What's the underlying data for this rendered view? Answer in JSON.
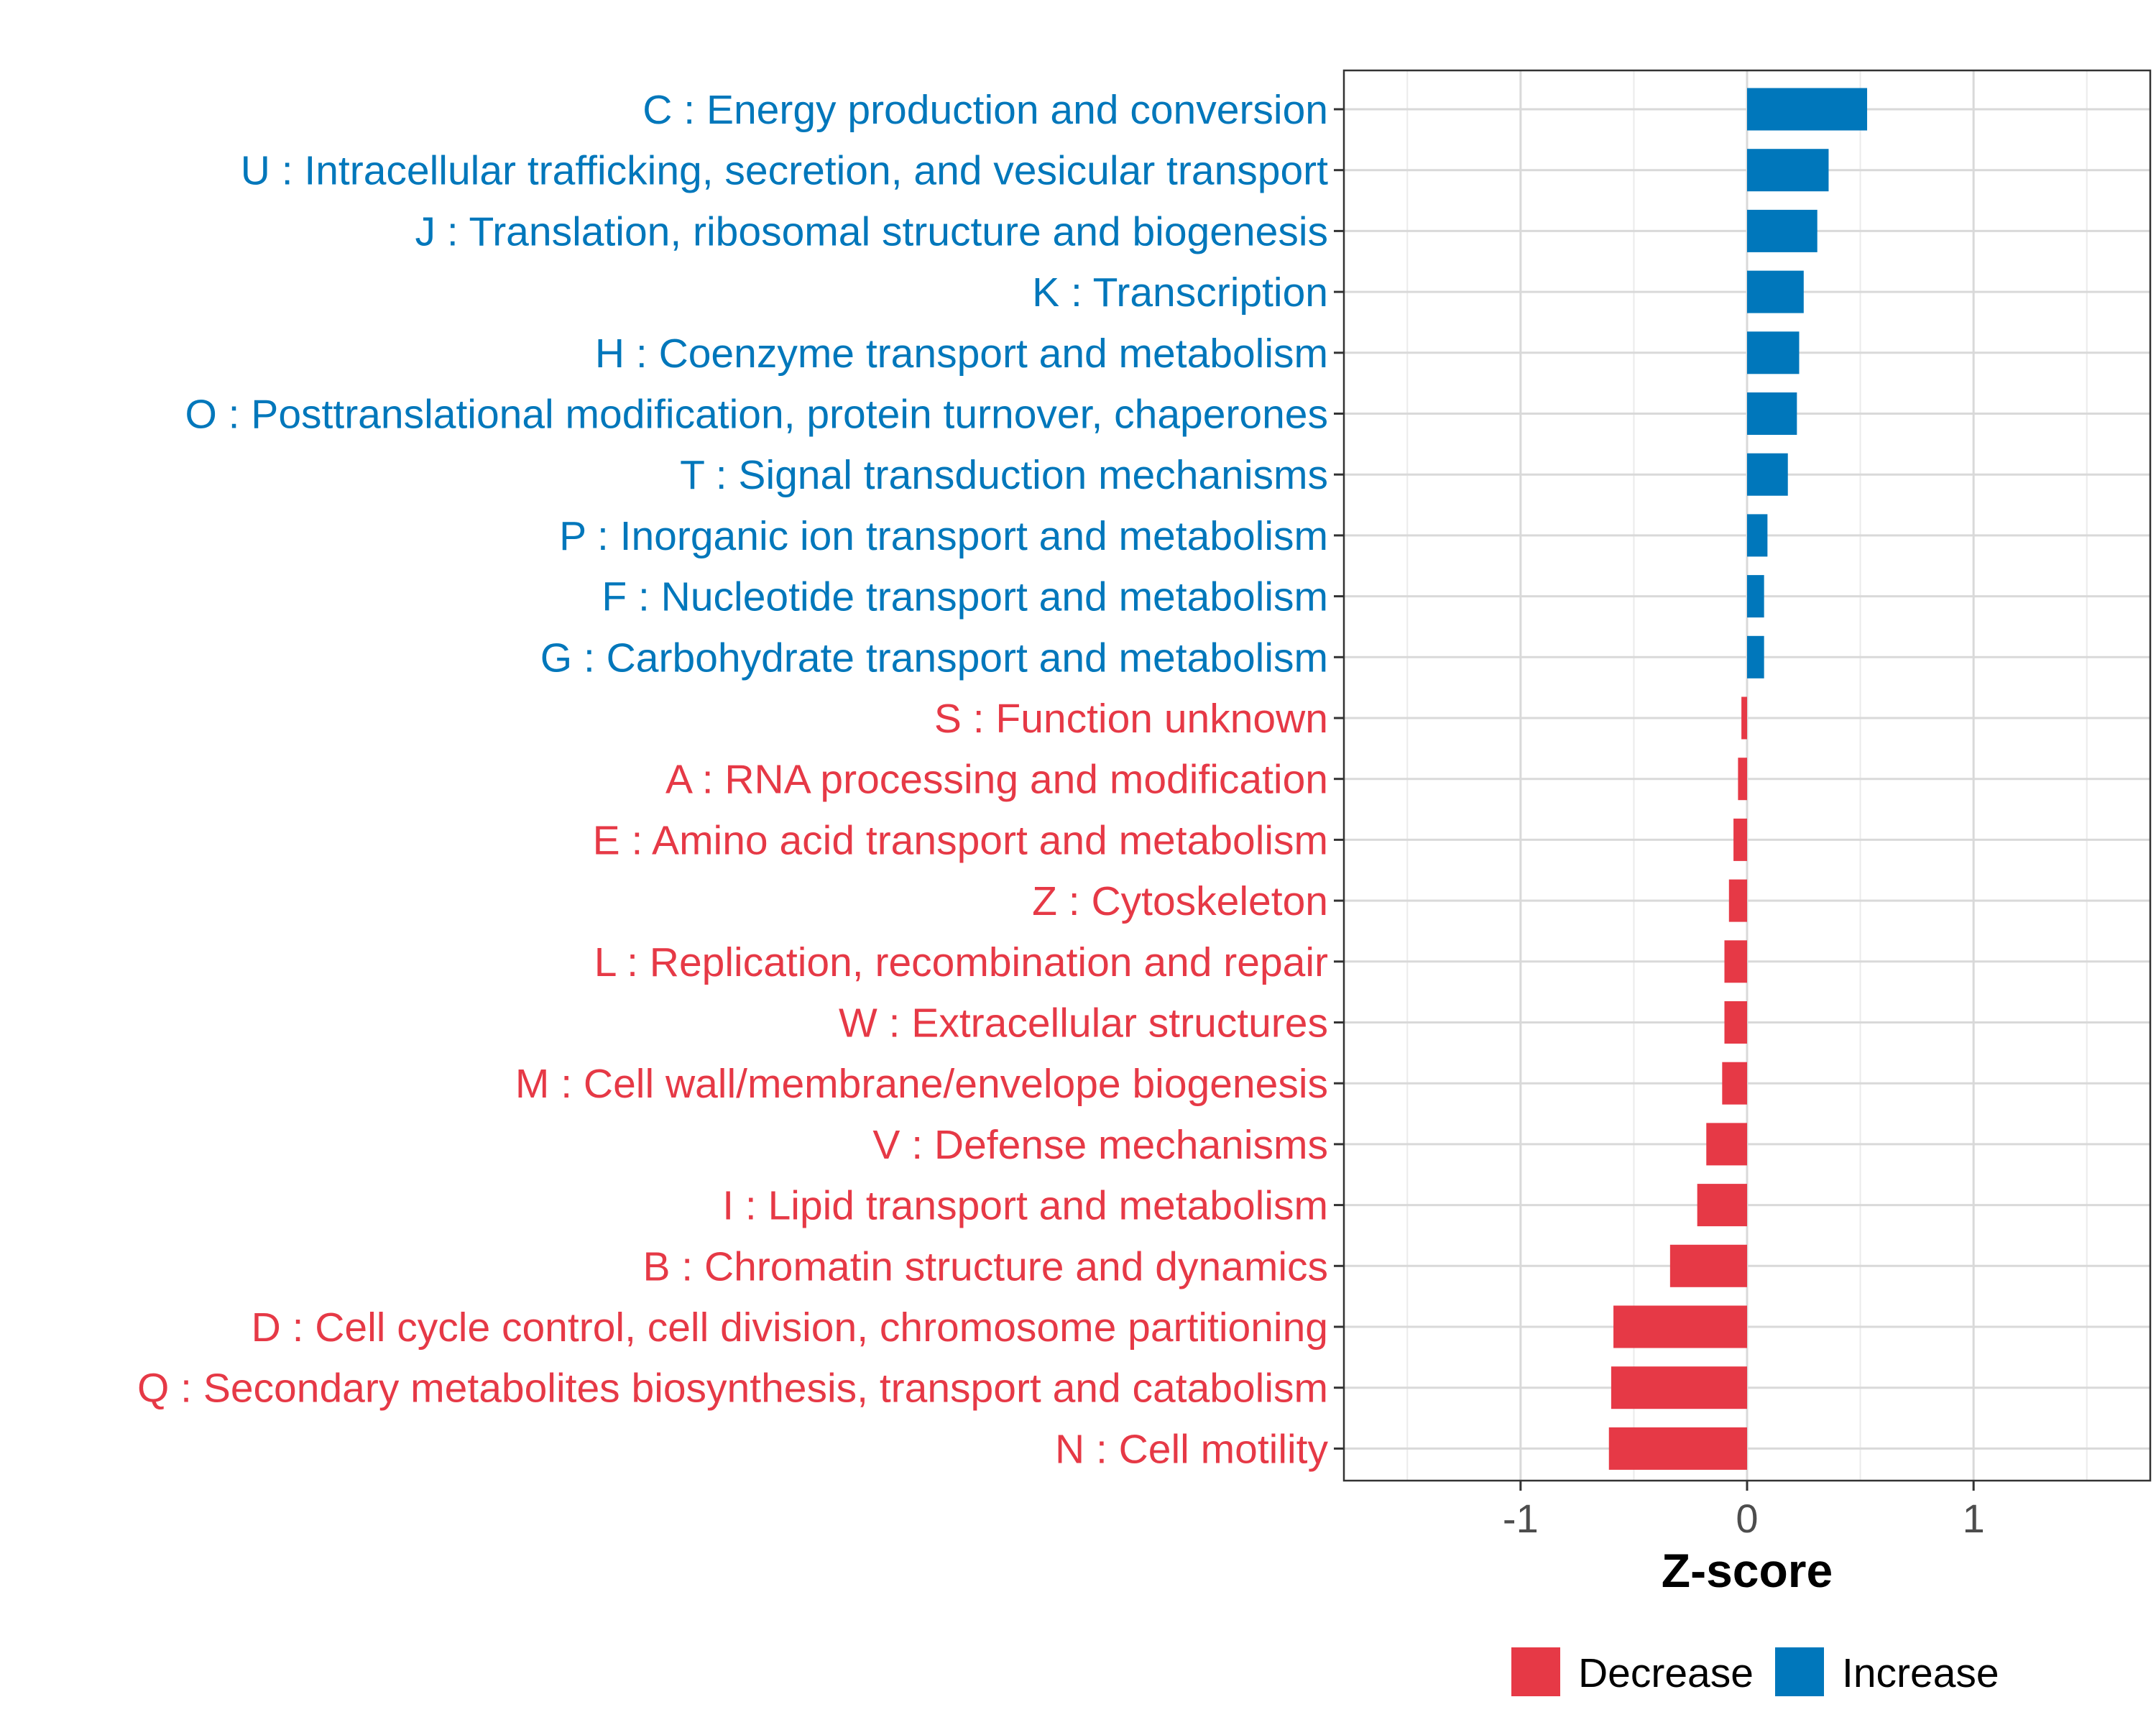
{
  "chart_data": {
    "type": "bar",
    "orientation": "horizontal",
    "xlabel": "Z-score",
    "xlim": [
      -1.78,
      1.78
    ],
    "xticks": [
      -1,
      0,
      1
    ],
    "xtick_labels": [
      "-1",
      "0",
      "1"
    ],
    "grid": true,
    "legend_position": "bottom",
    "colors": {
      "Decrease": "#e63946",
      "Increase": "#0077bb"
    },
    "categories": [
      "C : Energy production and conversion",
      "U : Intracellular trafficking, secretion, and vesicular transport",
      "J : Translation, ribosomal structure and biogenesis",
      "K : Transcription",
      "H : Coenzyme transport and metabolism",
      "O : Posttranslational modification, protein turnover, chaperones",
      "T : Signal transduction mechanisms",
      "P : Inorganic ion transport and metabolism",
      "F : Nucleotide transport and metabolism",
      "G : Carbohydrate transport and metabolism",
      "S : Function unknown",
      "A : RNA processing and modification",
      "E : Amino acid transport and metabolism",
      "Z : Cytoskeleton",
      "L : Replication, recombination and repair",
      "W : Extracellular structures",
      "M : Cell wall/membrane/envelope biogenesis",
      "V : Defense mechanisms",
      "I : Lipid transport and metabolism",
      "B : Chromatin structure and dynamics",
      "D : Cell cycle control, cell division, chromosome partitioning",
      "Q : Secondary metabolites biosynthesis, transport and catabolism",
      "N : Cell motility"
    ],
    "values": [
      0.53,
      0.36,
      0.31,
      0.25,
      0.23,
      0.22,
      0.18,
      0.09,
      0.075,
      0.075,
      -0.025,
      -0.04,
      -0.06,
      -0.08,
      -0.1,
      -0.1,
      -0.11,
      -0.18,
      -0.22,
      -0.34,
      -0.59,
      -0.6,
      -0.61
    ],
    "groups": [
      "Increase",
      "Increase",
      "Increase",
      "Increase",
      "Increase",
      "Increase",
      "Increase",
      "Increase",
      "Increase",
      "Increase",
      "Decrease",
      "Decrease",
      "Decrease",
      "Decrease",
      "Decrease",
      "Decrease",
      "Decrease",
      "Decrease",
      "Decrease",
      "Decrease",
      "Decrease",
      "Decrease",
      "Decrease"
    ],
    "legend": [
      "Decrease",
      "Increase"
    ]
  }
}
